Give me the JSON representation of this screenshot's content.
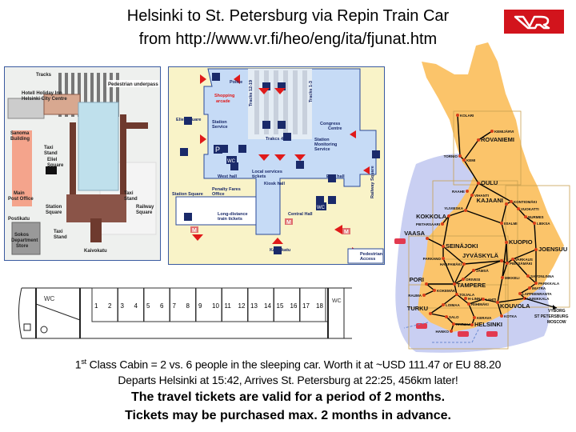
{
  "header": {
    "title_line1": "Helsinki to St. Petersburg via Repin Train Car",
    "title_line2": "from http://www.vr.fi/heo/eng/ita/fjunat.htm",
    "logo_text": "VR"
  },
  "station_map": {
    "labels": [
      "Tracks",
      "Pedestrian underpass",
      "Hotell Holiday Inn",
      "Helsinki City Centre",
      "Sanoma",
      "Building",
      "Taxi",
      "Stand",
      "Eliel",
      "Square",
      "Main",
      "Post Office",
      "Station",
      "Square",
      "Taxi",
      "Stand",
      "Railway",
      "Square",
      "Postikatu",
      "Taxi",
      "Stand",
      "Sokos",
      "Department",
      "Store",
      "Kaivokatu"
    ]
  },
  "station_plan": {
    "labels": [
      "Police",
      "Shopping",
      "arcade",
      "Tracks 12-19",
      "Tracks 1-3",
      "Eliel Square",
      "Station",
      "Service",
      "Congress",
      "Centre",
      "Trakcs 4-11",
      "Station",
      "Monitoring",
      "Service",
      "West hall",
      "Local services",
      "tickets",
      "East hall",
      "Kiosk hall",
      "Station Square",
      "Railway Square",
      "Penalty Fares",
      "Office",
      "Long-distance",
      "train tickets",
      "Central Hall",
      "Kaivokatu",
      "Pedestrian",
      "Access",
      "M",
      "M",
      "M",
      "P",
      "WC",
      "WC"
    ]
  },
  "train_car": {
    "compartments": [
      "1",
      "2",
      "3",
      "4",
      "5",
      "6",
      "7",
      "8",
      "9",
      "10",
      "11",
      "12",
      "13",
      "14",
      "15",
      "16",
      "17",
      "18"
    ],
    "wc_left": "WC",
    "wc_right": "WC"
  },
  "map": {
    "cities": [
      "KOLARI",
      "KEMIJÄRVI",
      "ROVANIEMI",
      "TORNIO",
      "KEMI",
      "OULU",
      "RAAHE",
      "VIHANTI",
      "KAJAANI",
      "KONTIOMÄKI",
      "VUOKATTI",
      "NURMES",
      "LIEKSA",
      "YLIVIESKA",
      "KOKKOLA",
      "IISALMI",
      "PIETARSAARI",
      "VAASA",
      "SEINÄJOKI",
      "KUOPIO",
      "JOENSUU",
      "PARKANO",
      "JYVÄSKYLÄ",
      "VARKAUS",
      "PIEKSÄMÄKI",
      "HAAPAMÄKI",
      "JÄMSÄ",
      "SAVONLINNA",
      "MIKKELI",
      "ORIVESI",
      "PORI",
      "TAMPERE",
      "PARIKKALA",
      "IMATRA",
      "RAUMA",
      "KOKEMÄKI",
      "TOIJALA",
      "H-LINNA",
      "LAPPEENRANTA",
      "VAINIKKALA",
      "LAHTI",
      "LOIMAA",
      "RIIHIMÄKI",
      "KOUVOLA",
      "SALO",
      "TURKU",
      "KARJAA",
      "KERAVA",
      "KOTKA",
      "HELSINKI",
      "HANKO"
    ],
    "destinations": [
      "VYBORG",
      "ST PETERSBURG",
      "MOSCOW"
    ],
    "colors": {
      "land": "#fbc46a",
      "sea": "#c9cff2",
      "rail": "#000000",
      "station": "#d9401a"
    }
  },
  "footer": {
    "line1_num": "1",
    "line1_sup": "st",
    "line1_rest": " Class Cabin = 2 vs. 6 people in the sleeping car.  Worth it at ~USD 111.47 or EU 88.20",
    "line2": "Departs Helsinki at 15:42, Arrives St. Petersburg at 22:25, 456km later!",
    "line3": "The travel tickets are valid for a period of 2 months.",
    "line4": "Tickets may be purchased max. 2 months in advance."
  }
}
